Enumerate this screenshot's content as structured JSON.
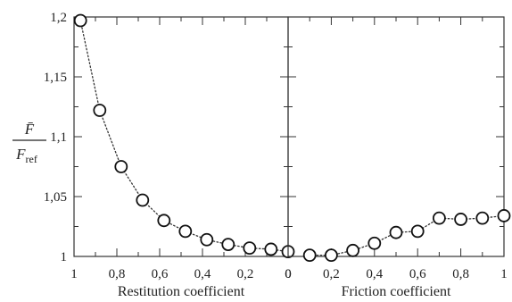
{
  "chart_data": [
    {
      "type": "line",
      "marker": "open-circle",
      "line_style": "dotted",
      "xlabel": "Restitution coefficient",
      "x_axis_reversed": true,
      "xlim": [
        1,
        0
      ],
      "ylim": [
        1,
        1.2
      ],
      "x_tick_labels": [
        "1",
        "0,8",
        "0,6",
        "0,4",
        "0,2",
        "0"
      ],
      "y_tick_labels": [
        "1",
        "1,05",
        "1,1",
        "1,15",
        "1,2"
      ],
      "y_tick_values": [
        1,
        1.05,
        1.1,
        1.15,
        1.2
      ],
      "x_tick_values": [
        1,
        0.8,
        0.6,
        0.4,
        0.2,
        0
      ],
      "x": [
        0.97,
        0.88,
        0.78,
        0.68,
        0.58,
        0.48,
        0.38,
        0.28,
        0.18,
        0.08,
        0.0
      ],
      "y": [
        1.197,
        1.122,
        1.075,
        1.047,
        1.03,
        1.021,
        1.014,
        1.01,
        1.007,
        1.006,
        1.004
      ]
    },
    {
      "type": "line",
      "marker": "open-circle",
      "line_style": "dotted",
      "xlabel": "Friction coefficient",
      "xlim": [
        0,
        1
      ],
      "ylim": [
        1,
        1.2
      ],
      "x_tick_labels": [
        "0",
        "0,2",
        "0,4",
        "0,6",
        "0,8",
        "1"
      ],
      "x_tick_values": [
        0,
        0.2,
        0.4,
        0.6,
        0.8,
        1
      ],
      "x": [
        0.1,
        0.2,
        0.3,
        0.4,
        0.5,
        0.6,
        0.7,
        0.8,
        0.9,
        1.0
      ],
      "y": [
        1.001,
        1.001,
        1.005,
        1.011,
        1.02,
        1.021,
        1.032,
        1.031,
        1.032,
        1.034
      ]
    }
  ],
  "ylabel": {
    "numerator": "F̄",
    "denominator_main": "F",
    "denominator_sub": "ref"
  },
  "colors": {
    "axis": "#333333",
    "marker_stroke": "#111111",
    "line": "#333333"
  }
}
